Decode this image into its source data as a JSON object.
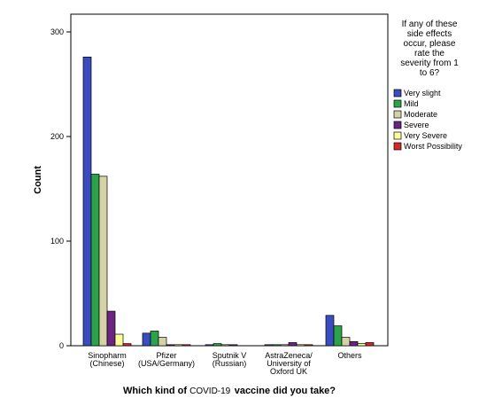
{
  "chart_data": {
    "type": "bar",
    "categories": [
      [
        "Sinopharm",
        "(Chinese)"
      ],
      [
        "Pfizer",
        "(USA/Germany)"
      ],
      [
        "Sputnik V",
        "(Russian)"
      ],
      [
        "AstraZeneca/",
        "University of",
        "Oxford UK"
      ],
      [
        "Others"
      ]
    ],
    "series": [
      {
        "name": "Very slight",
        "color": "#3a4cc0",
        "values": [
          276,
          12,
          1,
          1,
          29
        ]
      },
      {
        "name": "Mild",
        "color": "#2aa34a",
        "values": [
          164,
          14,
          2,
          1,
          19
        ]
      },
      {
        "name": "Moderate",
        "color": "#d6d2a8",
        "values": [
          162,
          8,
          1,
          1,
          8
        ]
      },
      {
        "name": "Severe",
        "color": "#6b2580",
        "values": [
          33,
          1,
          1,
          3,
          4
        ]
      },
      {
        "name": "Very Severe",
        "color": "#ffff99",
        "values": [
          11,
          1,
          0,
          1,
          2
        ]
      },
      {
        "name": "Worst  Possibility",
        "color": "#d62728",
        "values": [
          2,
          1,
          0,
          1,
          3
        ]
      }
    ],
    "ylabel": "Count",
    "xlabel_parts": [
      "Which kind of ",
      "COVID-19",
      " vaccine did you take?"
    ],
    "yticks": [
      0,
      100,
      200,
      300
    ],
    "ylim": [
      0,
      320
    ],
    "legend_title_lines": [
      "If any of these",
      "side effects",
      "occur, please",
      "rate the",
      "severity from 1",
      "to 6?"
    ],
    "legend_position": "right",
    "grid": false
  }
}
